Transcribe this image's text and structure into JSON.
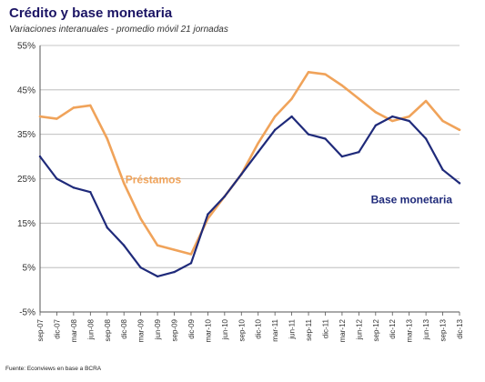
{
  "chart_data": {
    "type": "line",
    "title": "Crédito y base monetaria",
    "subtitle": "Variaciones interanuales - promedio móvil 21 jornadas",
    "source": "Fuente: Econviews en base a BCRA",
    "ylim": [
      -5,
      55
    ],
    "yticks": [
      55,
      45,
      35,
      25,
      15,
      5,
      -5
    ],
    "yticklabels": [
      "55%",
      "45%",
      "35%",
      "25%",
      "15%",
      "5%",
      "-5%"
    ],
    "x": [
      "sep-07",
      "dic-07",
      "mar-08",
      "jun-08",
      "sep-08",
      "dic-08",
      "mar-09",
      "jun-09",
      "sep-09",
      "dic-09",
      "mar-10",
      "jun-10",
      "sep-10",
      "dic-10",
      "mar-11",
      "jun-11",
      "sep-11",
      "dic-11",
      "mar-12",
      "jun-12",
      "sep-12",
      "dic-12",
      "mar-13",
      "jun-13",
      "sep-13",
      "dic-13"
    ],
    "grid": {
      "horizontal": true,
      "vertical": false
    },
    "series": [
      {
        "name": "Préstamos",
        "color": "#f0a35a",
        "label_position": "upper-left",
        "values": [
          39,
          38.5,
          41,
          41.5,
          34,
          24,
          16,
          10,
          9,
          8,
          16,
          21,
          26,
          33,
          39,
          43,
          49,
          48.5,
          46,
          43,
          40,
          38,
          39,
          42.5,
          38,
          36
        ]
      },
      {
        "name": "Base monetaria",
        "color": "#1f2a7a",
        "label_position": "lower-right",
        "values": [
          30,
          25,
          23,
          22,
          14,
          10,
          5,
          3,
          4,
          6,
          17,
          21,
          26,
          31,
          36,
          39,
          35,
          34,
          30,
          31,
          37,
          39,
          38,
          34,
          27,
          24
        ]
      }
    ]
  }
}
